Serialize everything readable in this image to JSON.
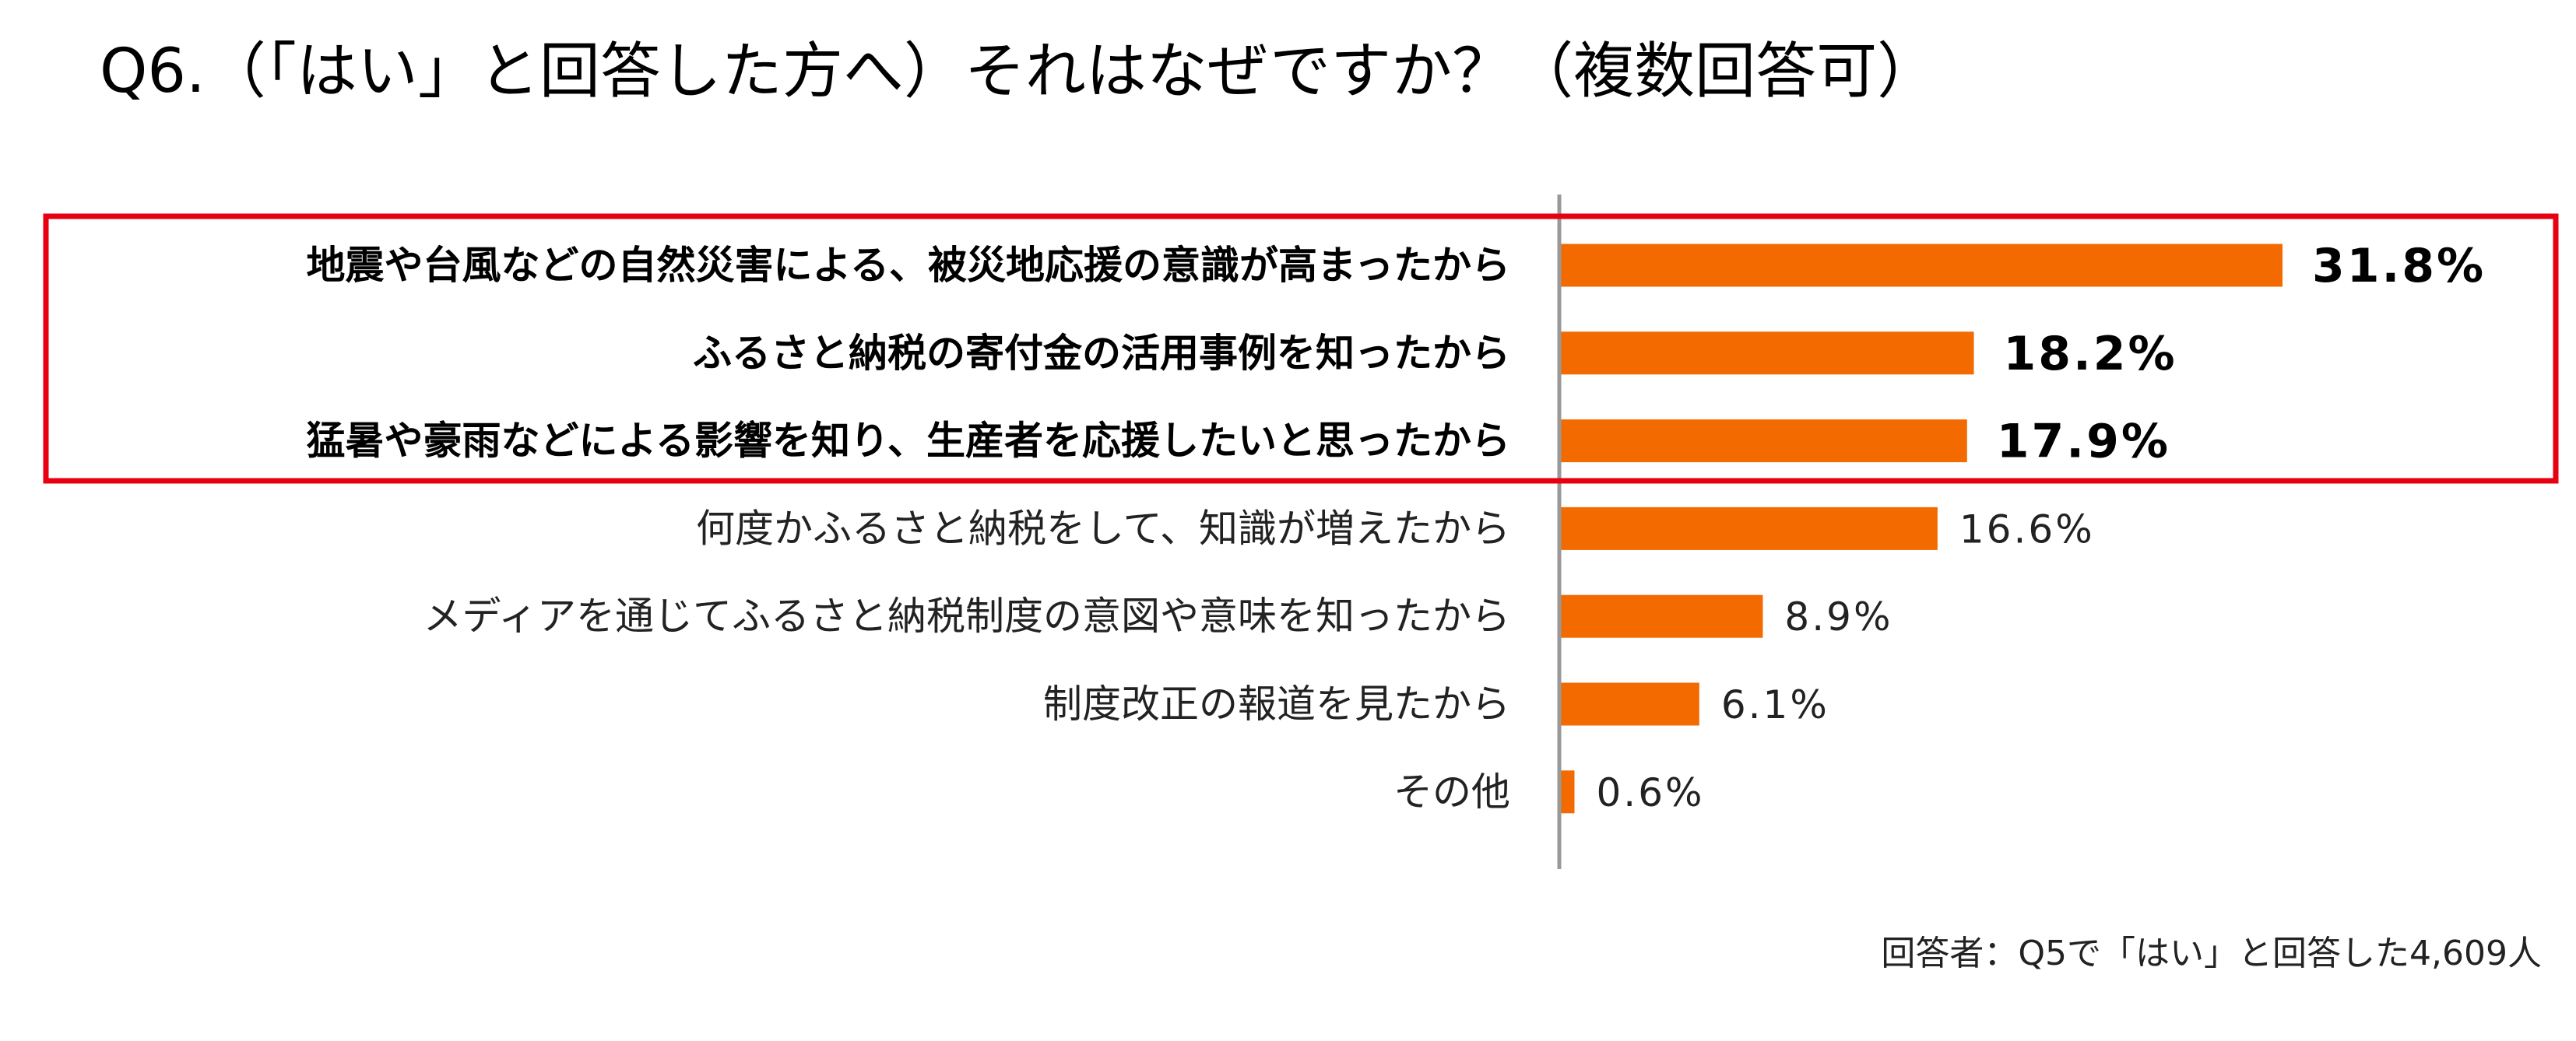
{
  "chart_data": {
    "type": "bar",
    "orientation": "horizontal",
    "title": "Q6.（「はい」と回答した方へ）それはなぜですか？（複数回答可）",
    "categories": [
      "地震や台風などの自然災害による、被災地応援の意識が高まったから",
      "ふるさと納税の寄付金の活用事例を知ったから",
      "猛暑や豪雨などによる影響を知り、生産者を応援したいと思ったから",
      "何度かふるさと納税をして、知識が増えたから",
      "メディアを通じてふるさと納税制度の意図や意味を知ったから",
      "制度改正の報道を見たから",
      "その他"
    ],
    "values": [
      31.8,
      18.2,
      17.9,
      16.6,
      8.9,
      6.1,
      0.6
    ],
    "value_labels": [
      "31.8%",
      "18.2%",
      "17.9%",
      "16.6%",
      "8.9%",
      "6.1%",
      "0.6%"
    ],
    "highlighted": [
      true,
      true,
      true,
      false,
      false,
      false,
      false
    ],
    "xlabel": "",
    "ylabel": "",
    "grid": false,
    "legend": "none",
    "bar_color": "#f26a00",
    "highlight_box_color": "#e60012",
    "note": "回答者：Q5で「はい」と回答した4,609人"
  }
}
